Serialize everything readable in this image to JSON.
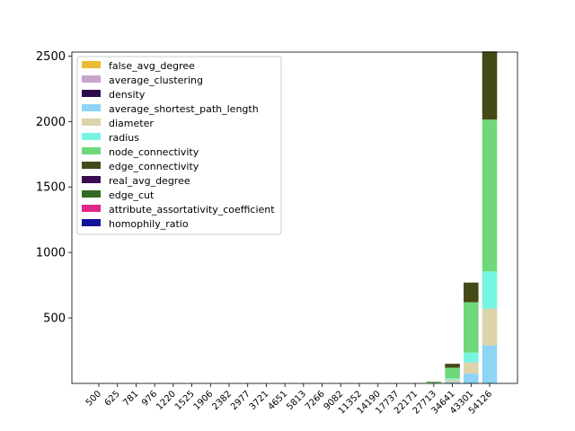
{
  "chart_data": {
    "type": "bar",
    "stacked": true,
    "title": "",
    "xlabel": "",
    "ylabel": "",
    "categories": [
      "500",
      "625",
      "781",
      "976",
      "1220",
      "1525",
      "1906",
      "2382",
      "2977",
      "3721",
      "4651",
      "5813",
      "7266",
      "9082",
      "11352",
      "14190",
      "17737",
      "22171",
      "27713",
      "34641",
      "43301",
      "54126"
    ],
    "ylim": [
      0,
      2530
    ],
    "yticks": [
      500,
      1000,
      1500,
      2000,
      2500
    ],
    "legend_position": "upper-left",
    "series": [
      {
        "name": "false_avg_degree",
        "color": "#e8bd32",
        "values": [
          0,
          0,
          0,
          0,
          0,
          0,
          0,
          0,
          0,
          0,
          0,
          0,
          0,
          0,
          0,
          0,
          0,
          0,
          0,
          0,
          0,
          0
        ]
      },
      {
        "name": "average_clustering",
        "color": "#c9a3c9",
        "values": [
          0,
          0,
          0,
          0,
          0,
          0,
          0,
          0,
          0,
          0,
          0,
          0,
          0,
          0,
          0,
          0,
          0,
          0,
          0,
          0,
          0,
          0
        ]
      },
      {
        "name": "density",
        "color": "#2e0a4b",
        "values": [
          0,
          0,
          0,
          0,
          0,
          0,
          0,
          0,
          0,
          0,
          0,
          0,
          0,
          0,
          0,
          0,
          0,
          0,
          0,
          0,
          0,
          0
        ]
      },
      {
        "name": "average_shortest_path_length",
        "color": "#8ed4f5",
        "values": [
          0,
          0,
          0,
          0,
          0,
          0,
          0,
          0,
          0,
          0,
          0,
          0,
          0,
          0,
          0,
          0,
          0,
          1,
          2,
          10,
          75,
          290
        ]
      },
      {
        "name": "diameter",
        "color": "#dcd3aa",
        "values": [
          0,
          0,
          0,
          0,
          0,
          0,
          0,
          0,
          0,
          0,
          0,
          0,
          0,
          0,
          0,
          0,
          0,
          0,
          2,
          20,
          85,
          280
        ]
      },
      {
        "name": "radius",
        "color": "#76f5e1",
        "values": [
          0,
          0,
          0,
          0,
          0,
          0,
          0,
          0,
          0,
          0,
          0,
          0,
          0,
          0,
          0,
          0,
          0,
          0,
          1,
          10,
          75,
          285
        ]
      },
      {
        "name": "node_connectivity",
        "color": "#6fd87b",
        "values": [
          0,
          0,
          0,
          0,
          0,
          0,
          0,
          0,
          0,
          0,
          0,
          0,
          0,
          0,
          0,
          0,
          0,
          1,
          5,
          80,
          385,
          1160
        ]
      },
      {
        "name": "edge_connectivity",
        "color": "#444a17",
        "values": [
          0,
          0,
          0,
          0,
          0,
          0,
          0,
          0,
          0,
          0,
          0,
          0,
          0,
          0,
          0,
          0,
          0,
          0,
          3,
          30,
          150,
          520
        ]
      },
      {
        "name": "real_avg_degree",
        "color": "#3b0a52",
        "values": [
          0,
          0,
          0,
          0,
          0,
          0,
          0,
          0,
          0,
          0,
          0,
          0,
          0,
          0,
          0,
          0,
          0,
          0,
          0,
          0,
          0,
          0
        ]
      },
      {
        "name": "edge_cut",
        "color": "#2f6a20",
        "values": [
          0,
          0,
          0,
          0,
          0,
          0,
          0,
          0,
          0,
          0,
          0,
          0,
          0,
          0,
          0,
          0,
          0,
          0,
          0,
          0,
          0,
          0
        ]
      },
      {
        "name": "attribute_assortativity_coefficient",
        "color": "#e0288a",
        "values": [
          0,
          0,
          0,
          0,
          0,
          0,
          0,
          0,
          0,
          0,
          0,
          0,
          0,
          0,
          0,
          0,
          0,
          0,
          0,
          0,
          0,
          0
        ]
      },
      {
        "name": "homophily_ratio",
        "color": "#13139a",
        "values": [
          0,
          0,
          0,
          0,
          0,
          0,
          0,
          0,
          0,
          0,
          0,
          0,
          0,
          0,
          0,
          0,
          0,
          0,
          0,
          0,
          0,
          0
        ]
      }
    ]
  }
}
